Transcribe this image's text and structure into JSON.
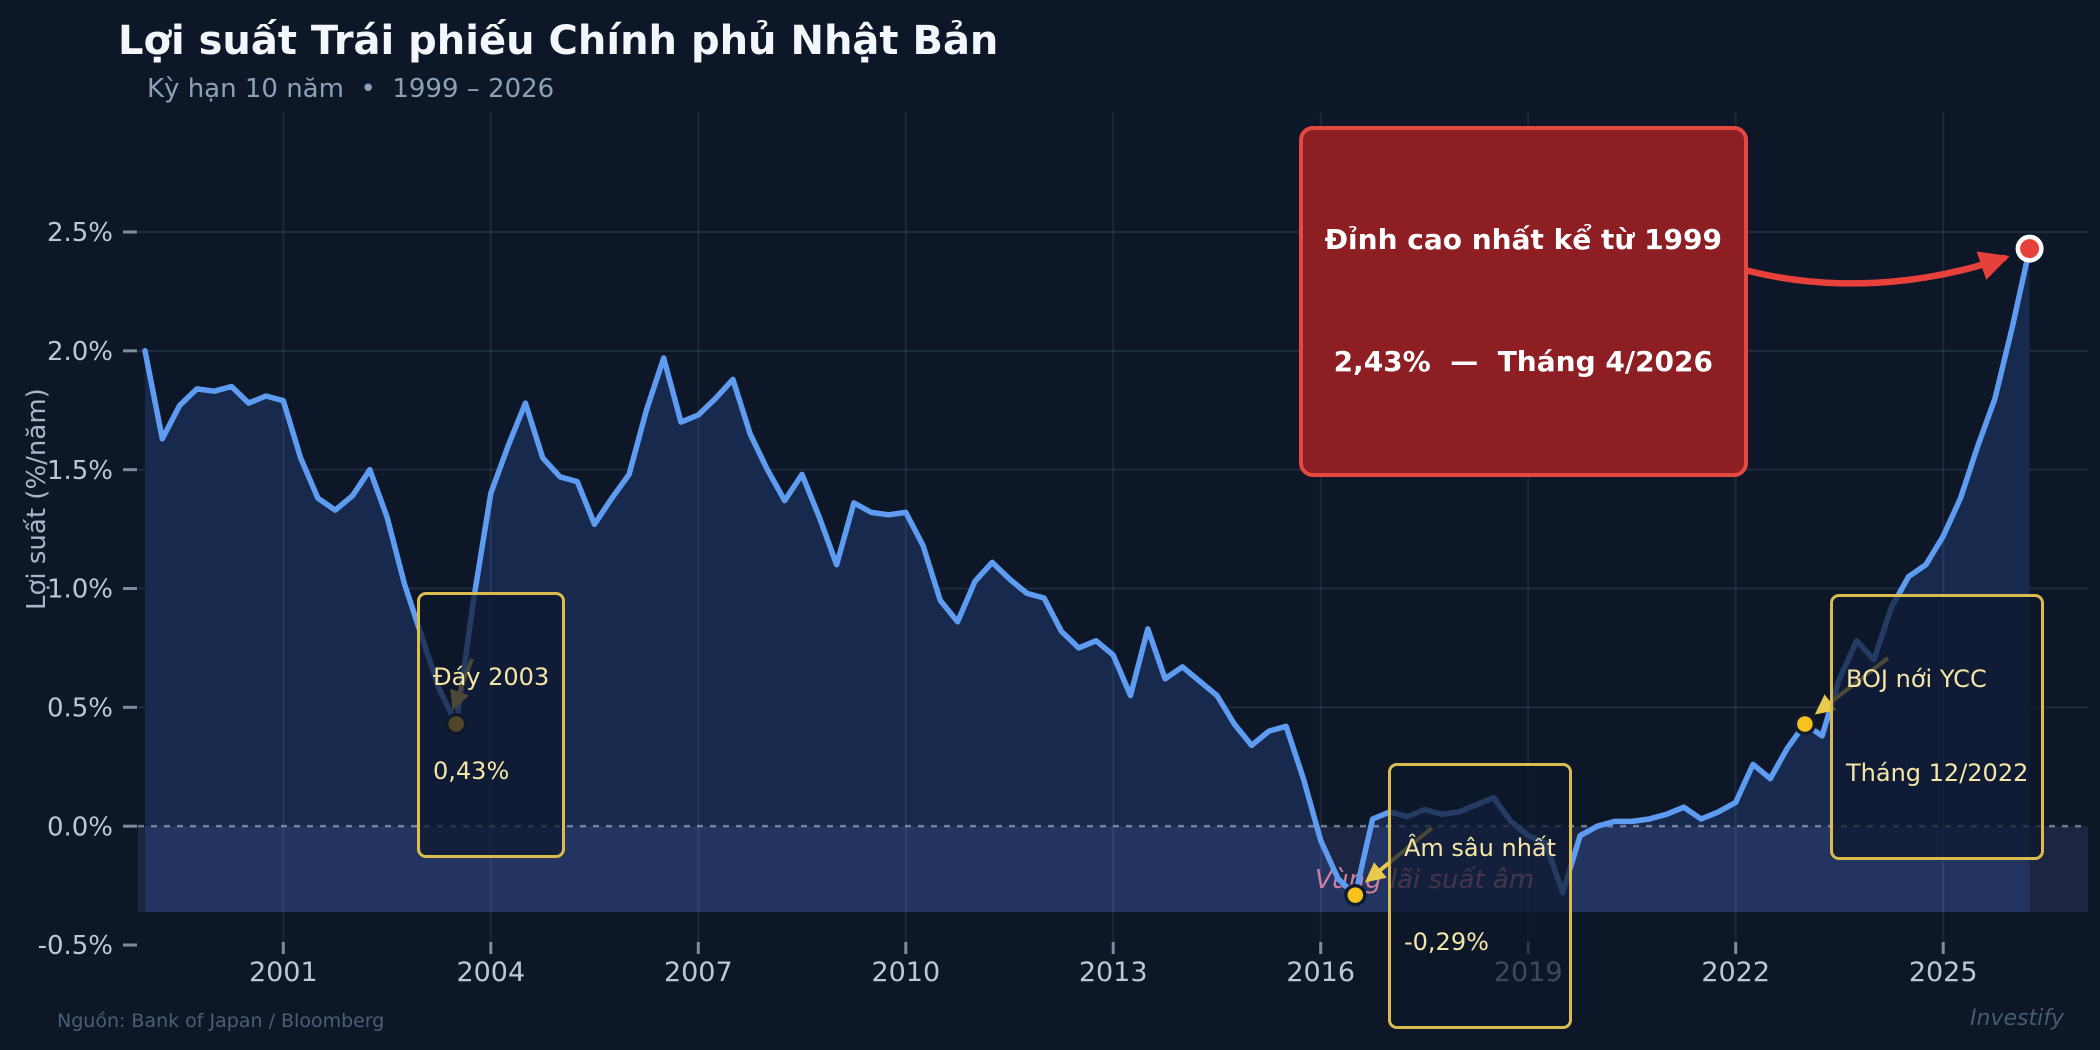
{
  "header": {
    "title": "Lợi suất Trái phiếu Chính phủ Nhật Bản",
    "subtitle": "Kỳ hạn 10 năm  •  1999 – 2026"
  },
  "footer": {
    "source": "Nguồn: Bank of Japan / Bloomberg",
    "watermark": "Investify"
  },
  "chart_data": {
    "type": "line",
    "title": "Lợi suất Trái phiếu Chính phủ Nhật Bản",
    "xlabel": "",
    "ylabel": "Lợi suất (%/năm)",
    "xlim": [
      1999,
      2026.4
    ],
    "ylim": [
      -0.5,
      2.5
    ],
    "grid": true,
    "zero_line": "dashed",
    "negative_band": true,
    "x": [
      1999,
      1999.25,
      1999.5,
      1999.75,
      2000,
      2000.25,
      2000.5,
      2000.75,
      2001,
      2001.25,
      2001.5,
      2001.75,
      2002,
      2002.25,
      2002.5,
      2002.75,
      2003,
      2003.25,
      2003.5,
      2003.75,
      2004,
      2004.25,
      2004.5,
      2004.75,
      2005,
      2005.25,
      2005.5,
      2005.75,
      2006,
      2006.25,
      2006.5,
      2006.75,
      2007,
      2007.25,
      2007.5,
      2007.75,
      2008,
      2008.25,
      2008.5,
      2008.75,
      2009,
      2009.25,
      2009.5,
      2009.75,
      2010,
      2010.25,
      2010.5,
      2010.75,
      2011,
      2011.25,
      2011.5,
      2011.75,
      2012,
      2012.25,
      2012.5,
      2012.75,
      2013,
      2013.25,
      2013.5,
      2013.75,
      2014,
      2014.25,
      2014.5,
      2014.75,
      2015,
      2015.25,
      2015.5,
      2015.75,
      2016,
      2016.25,
      2016.5,
      2016.75,
      2017,
      2017.25,
      2017.5,
      2017.75,
      2018,
      2018.25,
      2018.5,
      2018.75,
      2019,
      2019.25,
      2019.5,
      2019.75,
      2020,
      2020.25,
      2020.5,
      2020.75,
      2021,
      2021.25,
      2021.5,
      2021.75,
      2022,
      2022.25,
      2022.5,
      2022.75,
      2023,
      2023.25,
      2023.5,
      2023.75,
      2024,
      2024.25,
      2024.5,
      2024.75,
      2025,
      2025.25,
      2025.5,
      2025.75,
      2026,
      2026.25
    ],
    "values": [
      2.0,
      1.63,
      1.77,
      1.84,
      1.83,
      1.85,
      1.78,
      1.81,
      1.79,
      1.55,
      1.38,
      1.33,
      1.39,
      1.5,
      1.3,
      1.02,
      0.8,
      0.58,
      0.43,
      0.95,
      1.4,
      1.6,
      1.78,
      1.55,
      1.47,
      1.45,
      1.27,
      1.38,
      1.48,
      1.75,
      1.97,
      1.7,
      1.73,
      1.8,
      1.88,
      1.65,
      1.5,
      1.37,
      1.48,
      1.3,
      1.1,
      1.36,
      1.32,
      1.31,
      1.32,
      1.18,
      0.95,
      0.86,
      1.03,
      1.11,
      1.04,
      0.98,
      0.96,
      0.82,
      0.75,
      0.78,
      0.72,
      0.55,
      0.83,
      0.62,
      0.67,
      0.61,
      0.55,
      0.43,
      0.34,
      0.4,
      0.42,
      0.2,
      -0.06,
      -0.22,
      -0.29,
      0.03,
      0.06,
      0.04,
      0.07,
      0.05,
      0.06,
      0.09,
      0.12,
      0.02,
      -0.04,
      -0.07,
      -0.28,
      -0.04,
      0.0,
      0.02,
      0.02,
      0.03,
      0.05,
      0.08,
      0.03,
      0.06,
      0.1,
      0.26,
      0.2,
      0.33,
      0.43,
      0.38,
      0.62,
      0.78,
      0.7,
      0.92,
      1.05,
      1.1,
      1.22,
      1.38,
      1.6,
      1.8,
      2.1,
      2.43
    ],
    "yticks": [
      {
        "value": 2.5,
        "label": "2.5%"
      },
      {
        "value": 2.0,
        "label": "2.0%"
      },
      {
        "value": 1.5,
        "label": "1.5%"
      },
      {
        "value": 1.0,
        "label": "1.0%"
      },
      {
        "value": 0.5,
        "label": "0.5%"
      },
      {
        "value": 0.0,
        "label": "0.0%"
      },
      {
        "value": -0.5,
        "label": "-0.5%"
      }
    ],
    "xticks": [
      {
        "value": 2001,
        "label": "2001"
      },
      {
        "value": 2004,
        "label": "2004"
      },
      {
        "value": 2007,
        "label": "2007"
      },
      {
        "value": 2010,
        "label": "2010"
      },
      {
        "value": 2013,
        "label": "2013"
      },
      {
        "value": 2016,
        "label": "2016"
      },
      {
        "value": 2019,
        "label": "2019"
      },
      {
        "value": 2022,
        "label": "2022"
      },
      {
        "value": 2025,
        "label": "2025"
      }
    ],
    "annotations": [
      {
        "id": "peak",
        "style": "red",
        "t": 2026.25,
        "v": 2.43,
        "lines": [
          "Đỉnh cao nhất kể từ 1999",
          "2,43%  —  Tháng 4/2026"
        ]
      },
      {
        "id": "low-2003",
        "style": "yellow",
        "t": 2003.5,
        "v": 0.43,
        "lines": [
          "Đáy 2003",
          "0,43%"
        ]
      },
      {
        "id": "deepest-negative",
        "style": "yellow",
        "t": 2016.5,
        "v": -0.29,
        "lines": [
          "Âm sâu nhất",
          "-0,29%"
        ]
      },
      {
        "id": "boj-ycc",
        "style": "yellow",
        "t": 2023.0,
        "v": 0.43,
        "lines": [
          "BOJ nới YCC",
          "Tháng 12/2022"
        ]
      },
      {
        "id": "negative-zone",
        "style": "pink-text",
        "t": 2017.5,
        "v": -0.26,
        "lines": [
          "Vùng lãi suất âm"
        ]
      }
    ],
    "colors": {
      "background": "#0d1727",
      "line": "#5d9cf1",
      "area_fill": "#17294c",
      "negative_band": "rgba(115,120,215,0.15)",
      "grid": "rgba(165,190,230,0.13)",
      "zero_line": "rgba(185,198,218,0.55)",
      "accent_yellow": "#e9c84e",
      "marker_yellow": "#f7c21b",
      "accent_red": "#e8413c",
      "pink": "#cf7f9f",
      "tick_text": "#bcc8d9"
    }
  }
}
